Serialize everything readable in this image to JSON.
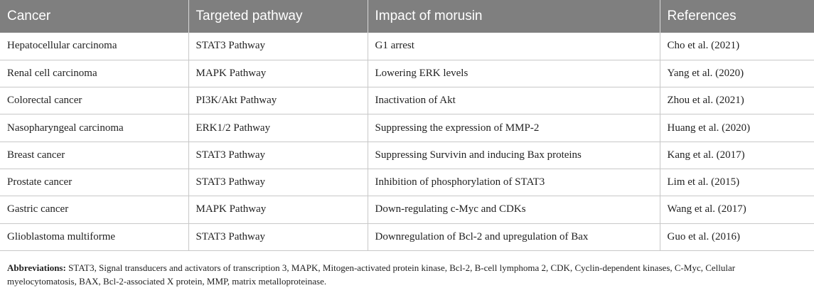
{
  "table": {
    "headers": [
      "Cancer",
      "Targeted pathway",
      "Impact of morusin",
      "References"
    ],
    "rows": [
      [
        "Hepatocellular carcinoma",
        "STAT3 Pathway",
        "G1 arrest",
        "Cho et al. (2021)"
      ],
      [
        "Renal cell carcinoma",
        "MAPK Pathway",
        "Lowering ERK levels",
        "Yang et al. (2020)"
      ],
      [
        "Colorectal cancer",
        "PI3K/Akt Pathway",
        "Inactivation of Akt",
        "Zhou et al. (2021)"
      ],
      [
        "Nasopharyngeal carcinoma",
        "ERK1/2 Pathway",
        "Suppressing the expression of MMP-2",
        "Huang et al. (2020)"
      ],
      [
        "Breast cancer",
        "STAT3 Pathway",
        "Suppressing Survivin and inducing Bax proteins",
        "Kang et al. (2017)"
      ],
      [
        "Prostate cancer",
        "STAT3 Pathway",
        "Inhibition of phosphorylation of STAT3",
        "Lim et al. (2015)"
      ],
      [
        "Gastric cancer",
        "MAPK Pathway",
        "Down-regulating c-Myc and CDKs",
        "Wang et al. (2017)"
      ],
      [
        "Glioblastoma multiforme",
        "STAT3 Pathway",
        "Downregulation of Bcl-2 and upregulation of Bax",
        "Guo et al. (2016)"
      ]
    ]
  },
  "footnote": {
    "label": "Abbreviations:",
    "text": " STAT3, Signal transducers and activators of transcription 3, MAPK, Mitogen-activated protein kinase, Bcl-2, B-cell lymphoma 2, CDK, Cyclin-dependent kinases, C-Myc, Cellular myelocytomatosis, BAX, Bcl-2-associated X protein, MMP, matrix metalloproteinase."
  }
}
